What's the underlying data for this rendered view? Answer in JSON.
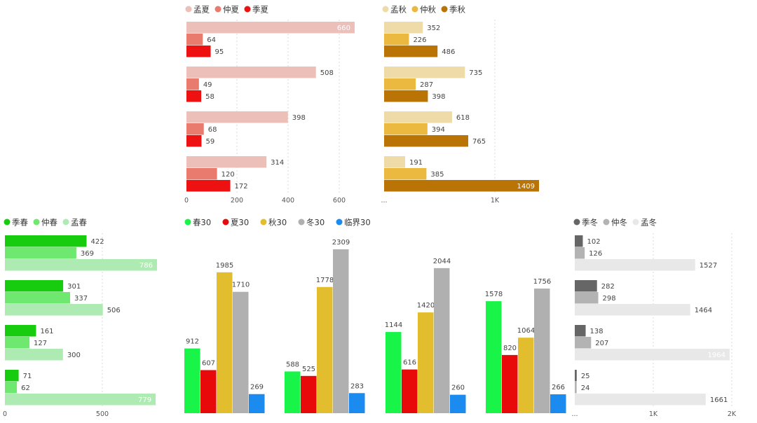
{
  "chart_data": [
    {
      "id": "summer",
      "type": "bar",
      "orientation": "horizontal",
      "legend_position": "top-left",
      "series": [
        {
          "name": "孟夏",
          "color": "#ECBFB8",
          "values": [
            660,
            508,
            398,
            314
          ]
        },
        {
          "name": "仲夏",
          "color": "#E87A6E",
          "values": [
            64,
            49,
            68,
            120
          ]
        },
        {
          "name": "季夏",
          "color": "#EE1111",
          "values": [
            95,
            58,
            59,
            172
          ]
        }
      ],
      "x_ticks": [
        "0",
        "200",
        "400",
        "600"
      ],
      "xlim": [
        0,
        660
      ],
      "grid": true
    },
    {
      "id": "autumn",
      "type": "bar",
      "orientation": "horizontal",
      "legend_position": "top-left",
      "series": [
        {
          "name": "孟秋",
          "color": "#EEDBA8",
          "values": [
            352,
            735,
            618,
            191
          ]
        },
        {
          "name": "仲秋",
          "color": "#EBB840",
          "values": [
            226,
            287,
            394,
            385
          ]
        },
        {
          "name": "季秋",
          "color": "#BA7406",
          "values": [
            486,
            398,
            765,
            1409
          ]
        }
      ],
      "x_ticks": [
        "...",
        "1K"
      ],
      "xlim": [
        0,
        1409
      ],
      "grid": true
    },
    {
      "id": "spring",
      "type": "bar",
      "orientation": "horizontal",
      "legend_position": "top-left",
      "series": [
        {
          "name": "季春",
          "color": "#17CC0F",
          "values": [
            422,
            301,
            161,
            71
          ]
        },
        {
          "name": "仲春",
          "color": "#6FE86F",
          "values": [
            369,
            337,
            127,
            62
          ]
        },
        {
          "name": "孟春",
          "color": "#AEEBB2",
          "values": [
            786,
            506,
            300,
            779
          ]
        }
      ],
      "x_ticks": [
        "0",
        "500"
      ],
      "xlim": [
        0,
        786
      ],
      "grid": true
    },
    {
      "id": "thirty",
      "type": "bar",
      "orientation": "vertical",
      "legend_position": "top-left",
      "series": [
        {
          "name": "春30",
          "color": "#18F548",
          "values": [
            912,
            588,
            1144,
            1578
          ]
        },
        {
          "name": "夏30",
          "color": "#E80A0A",
          "values": [
            607,
            525,
            616,
            820
          ]
        },
        {
          "name": "秋30",
          "color": "#E2BE2E",
          "values": [
            1985,
            1778,
            1420,
            1064
          ]
        },
        {
          "name": "冬30",
          "color": "#B0B0B0",
          "values": [
            1710,
            2309,
            2044,
            1756
          ]
        },
        {
          "name": "临界30",
          "color": "#1B8BF0",
          "values": [
            269,
            283,
            260,
            266
          ]
        }
      ],
      "ylim": [
        0,
        2309
      ],
      "grid": false
    },
    {
      "id": "winter",
      "type": "bar",
      "orientation": "horizontal",
      "legend_position": "top-left",
      "series": [
        {
          "name": "季冬",
          "color": "#666666",
          "values": [
            102,
            282,
            138,
            25
          ]
        },
        {
          "name": "仲冬",
          "color": "#B3B3B3",
          "values": [
            126,
            298,
            207,
            24
          ]
        },
        {
          "name": "孟冬",
          "color": "#E8E8E8",
          "values": [
            1527,
            1464,
            1964,
            1661
          ]
        }
      ],
      "x_ticks": [
        "...",
        "1K",
        "2K"
      ],
      "xlim": [
        0,
        2000
      ],
      "grid": true
    }
  ]
}
